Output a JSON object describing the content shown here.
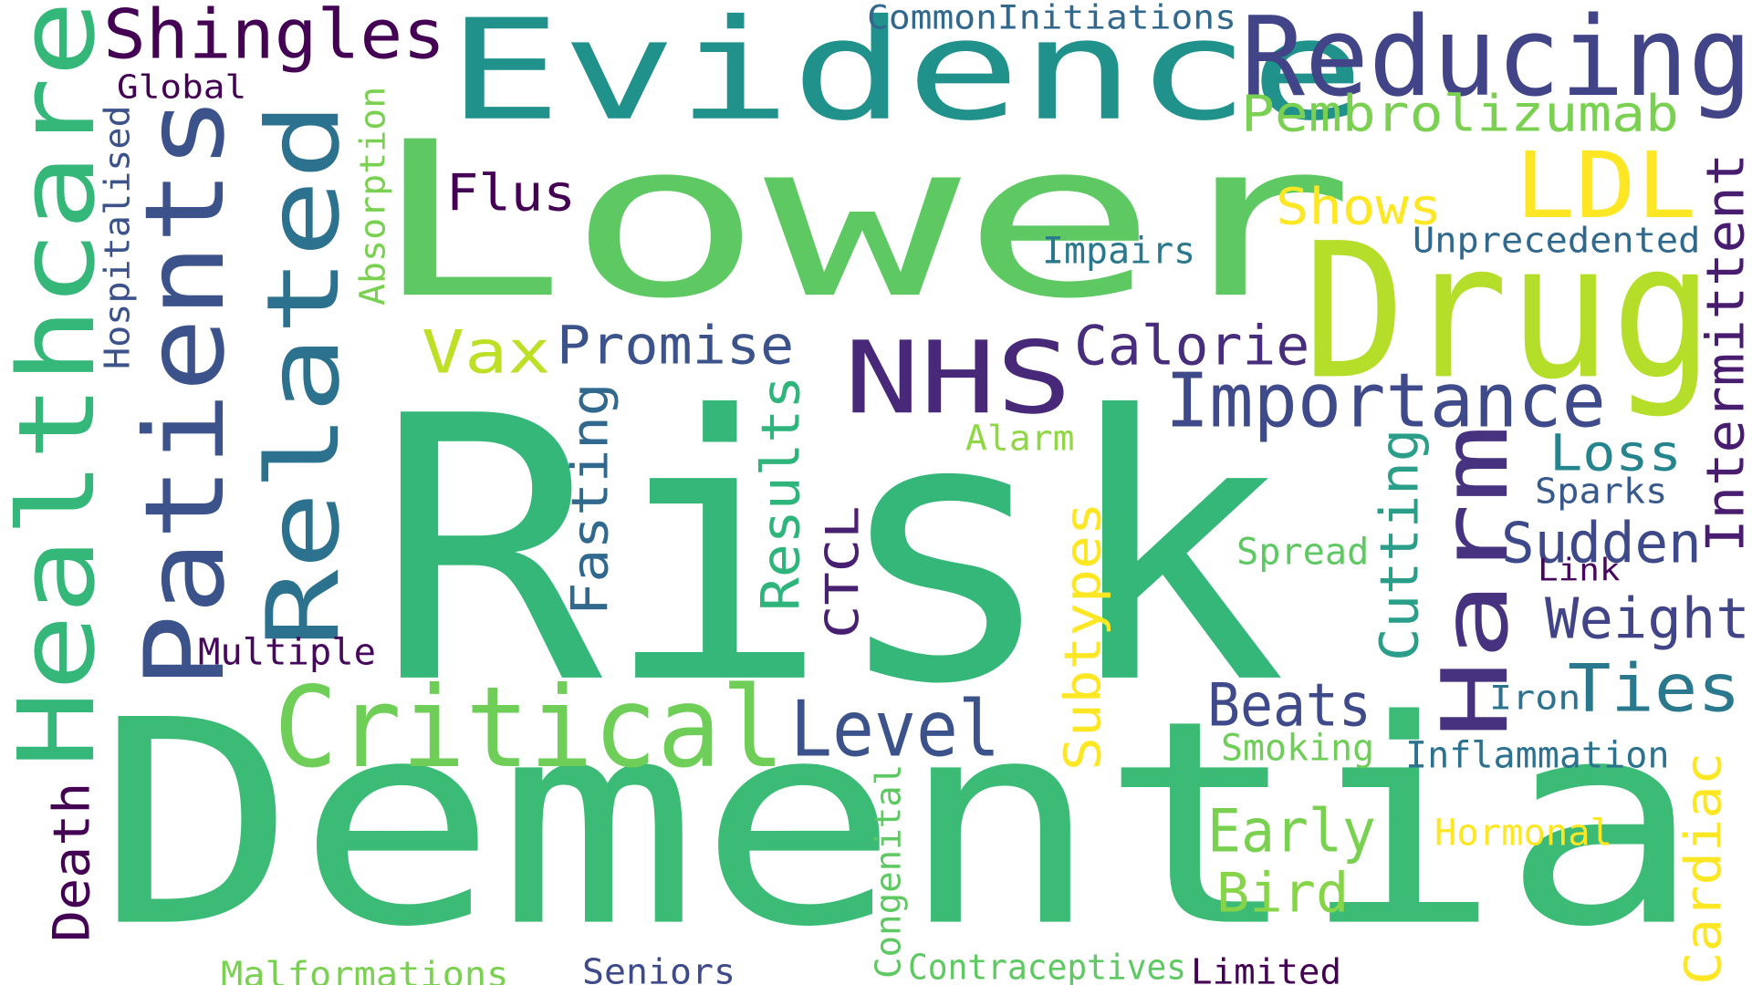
{
  "cloud": {
    "words": [
      {
        "text": "Risk",
        "color": "#35b779"
      },
      {
        "text": "Dementia",
        "color": "#3bbb75"
      },
      {
        "text": "Lower",
        "color": "#5ec962"
      },
      {
        "text": "Evidence",
        "color": "#21918c"
      },
      {
        "text": "Reducing",
        "color": "#414487"
      },
      {
        "text": "Healthcare",
        "color": "#35b779"
      },
      {
        "text": "Patients",
        "color": "#3b528b"
      },
      {
        "text": "Related",
        "color": "#2c728e"
      },
      {
        "text": "Drug",
        "color": "#b5de2b"
      },
      {
        "text": "Critical",
        "color": "#6ece58"
      },
      {
        "text": "NHS",
        "color": "#482878"
      },
      {
        "text": "Harm",
        "color": "#46327e"
      },
      {
        "text": "Shingles",
        "color": "#440154"
      },
      {
        "text": "Importance",
        "color": "#3e4a89"
      },
      {
        "text": "LDL",
        "color": "#fde725"
      },
      {
        "text": "Level",
        "color": "#3b528b"
      },
      {
        "text": "Pembrolizumab",
        "color": "#7ad151"
      },
      {
        "text": "Weight",
        "color": "#414487"
      },
      {
        "text": "Sudden",
        "color": "#3e4989"
      },
      {
        "text": "Calorie",
        "color": "#472d7b"
      },
      {
        "text": "Promise",
        "color": "#3b528b"
      },
      {
        "text": "Ties",
        "color": "#2a788e"
      },
      {
        "text": "Early",
        "color": "#7ad151"
      },
      {
        "text": "Bird",
        "color": "#86d549"
      },
      {
        "text": "Beats",
        "color": "#3e4a89"
      },
      {
        "text": "Loss",
        "color": "#25858e"
      },
      {
        "text": "Vax",
        "color": "#bddf26"
      },
      {
        "text": "Shows",
        "color": "#fde725"
      },
      {
        "text": "Cutting",
        "color": "#2a9e89"
      },
      {
        "text": "Results",
        "color": "#2fb47c"
      },
      {
        "text": "Fasting",
        "color": "#31688e"
      },
      {
        "text": "Flus",
        "color": "#440154"
      },
      {
        "text": "Intermittent",
        "color": "#481c6e"
      },
      {
        "text": "Death",
        "color": "#440154"
      },
      {
        "text": "Subtypes",
        "color": "#fde725"
      },
      {
        "text": "CTCL",
        "color": "#482071"
      },
      {
        "text": "Cardiac",
        "color": "#fde725"
      },
      {
        "text": "Multiple",
        "color": "#46085c"
      },
      {
        "text": "Inflammation",
        "color": "#2c728e"
      },
      {
        "text": "Impairs",
        "color": "#2a788e"
      },
      {
        "text": "Unprecedented",
        "color": "#31688e"
      },
      {
        "text": "CommonInitiations",
        "color": "#31688e"
      },
      {
        "text": "Global",
        "color": "#440154"
      },
      {
        "text": "Hospitalised",
        "color": "#3b528b"
      },
      {
        "text": "Absorption",
        "color": "#7ad151"
      },
      {
        "text": "Alarm",
        "color": "#8fd744"
      },
      {
        "text": "Sparks",
        "color": "#38598c"
      },
      {
        "text": "Spread",
        "color": "#5ec962"
      },
      {
        "text": "Link",
        "color": "#46085c"
      },
      {
        "text": "Smoking",
        "color": "#6ece58"
      },
      {
        "text": "Iron",
        "color": "#2c728e"
      },
      {
        "text": "Hormonal",
        "color": "#fde725"
      },
      {
        "text": "Congenital",
        "color": "#5ec962"
      },
      {
        "text": "Malformations",
        "color": "#7ad151"
      },
      {
        "text": "Seniors",
        "color": "#3e4a89"
      },
      {
        "text": "Contraceptives",
        "color": "#5ec962"
      },
      {
        "text": "Limited",
        "color": "#440154"
      }
    ]
  }
}
